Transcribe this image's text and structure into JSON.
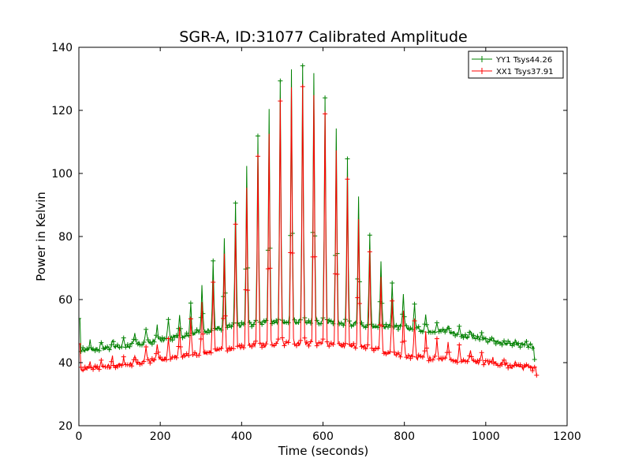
{
  "chart_data": {
    "type": "line",
    "title": "SGR-A, ID:31077 Calibrated Amplitude",
    "xlabel": "Time (seconds)",
    "ylabel": "Power in Kelvin",
    "xlim": [
      0,
      1200
    ],
    "ylim": [
      20,
      140
    ],
    "xticks": [
      0,
      200,
      400,
      600,
      800,
      1000,
      1200
    ],
    "yticks": [
      20,
      40,
      60,
      80,
      100,
      120,
      140
    ],
    "grid": false,
    "legend_position": "top-right",
    "marker": "+",
    "series": [
      {
        "name": "YY1 Tsys44.26",
        "color": "#008000",
        "x_range": [
          0,
          1120
        ],
        "baseline": [
          [
            0,
            44
          ],
          [
            100,
            45
          ],
          [
            200,
            47
          ],
          [
            300,
            50
          ],
          [
            400,
            52
          ],
          [
            500,
            53
          ],
          [
            600,
            53
          ],
          [
            700,
            52
          ],
          [
            800,
            51
          ],
          [
            900,
            50
          ],
          [
            1000,
            47
          ],
          [
            1120,
            45
          ]
        ],
        "peaks": [
          [
            0,
            54
          ],
          [
            30,
            46
          ],
          [
            60,
            47
          ],
          [
            90,
            48
          ],
          [
            115,
            48
          ],
          [
            140,
            49
          ],
          [
            165,
            51
          ],
          [
            190,
            52
          ],
          [
            215,
            54
          ],
          [
            240,
            55
          ],
          [
            265,
            58
          ],
          [
            290,
            60
          ],
          [
            315,
            68
          ],
          [
            345,
            75
          ],
          [
            370,
            84
          ],
          [
            395,
            95
          ],
          [
            420,
            105
          ],
          [
            450,
            115
          ],
          [
            480,
            124
          ],
          [
            505,
            132
          ],
          [
            530,
            133
          ],
          [
            560,
            134
          ],
          [
            585,
            130
          ],
          [
            610,
            123
          ],
          [
            635,
            113
          ],
          [
            665,
            103
          ],
          [
            690,
            91
          ],
          [
            715,
            80
          ],
          [
            745,
            72
          ],
          [
            770,
            66
          ],
          [
            800,
            61
          ],
          [
            830,
            58
          ],
          [
            855,
            55
          ],
          [
            885,
            53
          ],
          [
            910,
            52
          ],
          [
            940,
            51
          ],
          [
            965,
            50
          ],
          [
            995,
            49
          ],
          [
            1020,
            48
          ],
          [
            1050,
            47
          ],
          [
            1075,
            47
          ],
          [
            1100,
            46
          ],
          [
            1115,
            51
          ]
        ],
        "end_value": 41
      },
      {
        "name": "XX1 Tsys37.91",
        "color": "#ff0000",
        "x_range": [
          0,
          1125
        ],
        "baseline": [
          [
            0,
            38
          ],
          [
            100,
            39
          ],
          [
            200,
            41
          ],
          [
            300,
            43
          ],
          [
            400,
            45
          ],
          [
            500,
            46
          ],
          [
            600,
            46
          ],
          [
            700,
            45
          ],
          [
            800,
            42
          ],
          [
            900,
            41
          ],
          [
            1000,
            40
          ],
          [
            1120,
            38
          ]
        ],
        "peaks": [
          [
            0,
            46
          ],
          [
            30,
            40
          ],
          [
            60,
            41
          ],
          [
            90,
            42
          ],
          [
            115,
            42
          ],
          [
            140,
            43
          ],
          [
            165,
            45
          ],
          [
            190,
            46
          ],
          [
            215,
            48
          ],
          [
            240,
            50
          ],
          [
            265,
            53
          ],
          [
            290,
            55
          ],
          [
            315,
            62
          ],
          [
            345,
            70
          ],
          [
            370,
            78
          ],
          [
            395,
            88
          ],
          [
            420,
            99
          ],
          [
            450,
            108
          ],
          [
            480,
            117
          ],
          [
            505,
            126
          ],
          [
            530,
            127
          ],
          [
            560,
            128
          ],
          [
            585,
            124
          ],
          [
            610,
            117
          ],
          [
            635,
            107
          ],
          [
            665,
            97
          ],
          [
            690,
            85
          ],
          [
            715,
            75
          ],
          [
            745,
            67
          ],
          [
            770,
            60
          ],
          [
            800,
            56
          ],
          [
            830,
            52
          ],
          [
            855,
            49
          ],
          [
            885,
            47
          ],
          [
            910,
            46
          ],
          [
            940,
            45
          ],
          [
            965,
            44
          ],
          [
            995,
            43
          ],
          [
            1020,
            42
          ],
          [
            1050,
            41
          ],
          [
            1075,
            40
          ],
          [
            1100,
            40
          ],
          [
            1115,
            44
          ]
        ],
        "end_value": 36
      }
    ]
  }
}
